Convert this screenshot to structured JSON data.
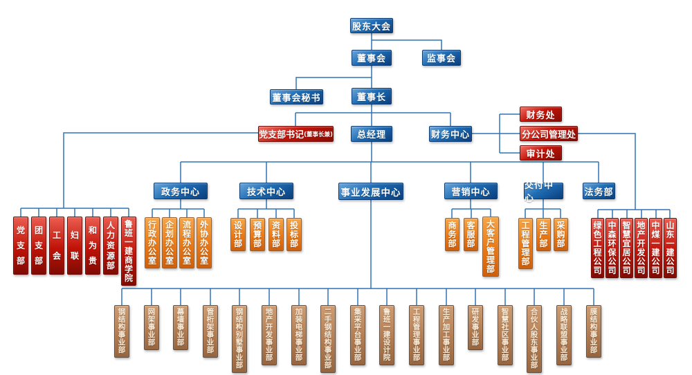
{
  "colors": {
    "blue_node": "#1f6cb4",
    "red_node": "#c01207",
    "orange_node": "#e87816",
    "brown_node": "#b07a50",
    "connector": "#2e74b5"
  },
  "nodes": {
    "shareholders": "股东大会",
    "board": "董事会",
    "supervisory": "监事会",
    "board_secretary": "董事会秘书",
    "chairman": "董事长",
    "party_secretary": "党支部书记",
    "party_secretary_suffix": "(董事长兼)",
    "general_manager": "总经理",
    "finance_center": "财务中心",
    "finance_office": "财务处",
    "branch_management": "分公司管理处",
    "audit_office": "审计处"
  },
  "centers": [
    "政务中心",
    "技术中心",
    "事业发展中心",
    "营销中心",
    "交付中心",
    "法务部"
  ],
  "party_mass_orgs": [
    "党支部",
    "团支部",
    "工会",
    "妇联",
    "和为贵",
    "人力资源部",
    "鲁班一建商学院"
  ],
  "admin_offices": [
    "行政办公室",
    "企划办公室",
    "流程办公室",
    "外协办公室"
  ],
  "tech_departments": [
    "设计部",
    "预算部",
    "资料部",
    "投标部"
  ],
  "marketing_departments": [
    "商务部",
    "客服部",
    "大客户管理部"
  ],
  "delivery_departments": [
    "工程管理部",
    "生产部",
    "采购部"
  ],
  "subsidiaries": [
    "绿色工程公司",
    "中森环保公司",
    "智慧宜居公司",
    "地产开发公司",
    "中煤一建公司",
    "山东一建公司"
  ],
  "business_units": [
    "钢结构事业部",
    "网架事业部",
    "幕墙事业部",
    "管桁架事业部",
    "钢结构别墅事业部",
    "地产开发事业部",
    "加装电梯事业部",
    "二手钢结构事业部",
    "集采平台事业部",
    "鲁班一建设计院",
    "工程管理事业部",
    "生产加工事业部",
    "研发事业部",
    "智慧社区事业部",
    "合伙人股东事业部",
    "战略联盟事业部",
    "膜结构事业部"
  ]
}
